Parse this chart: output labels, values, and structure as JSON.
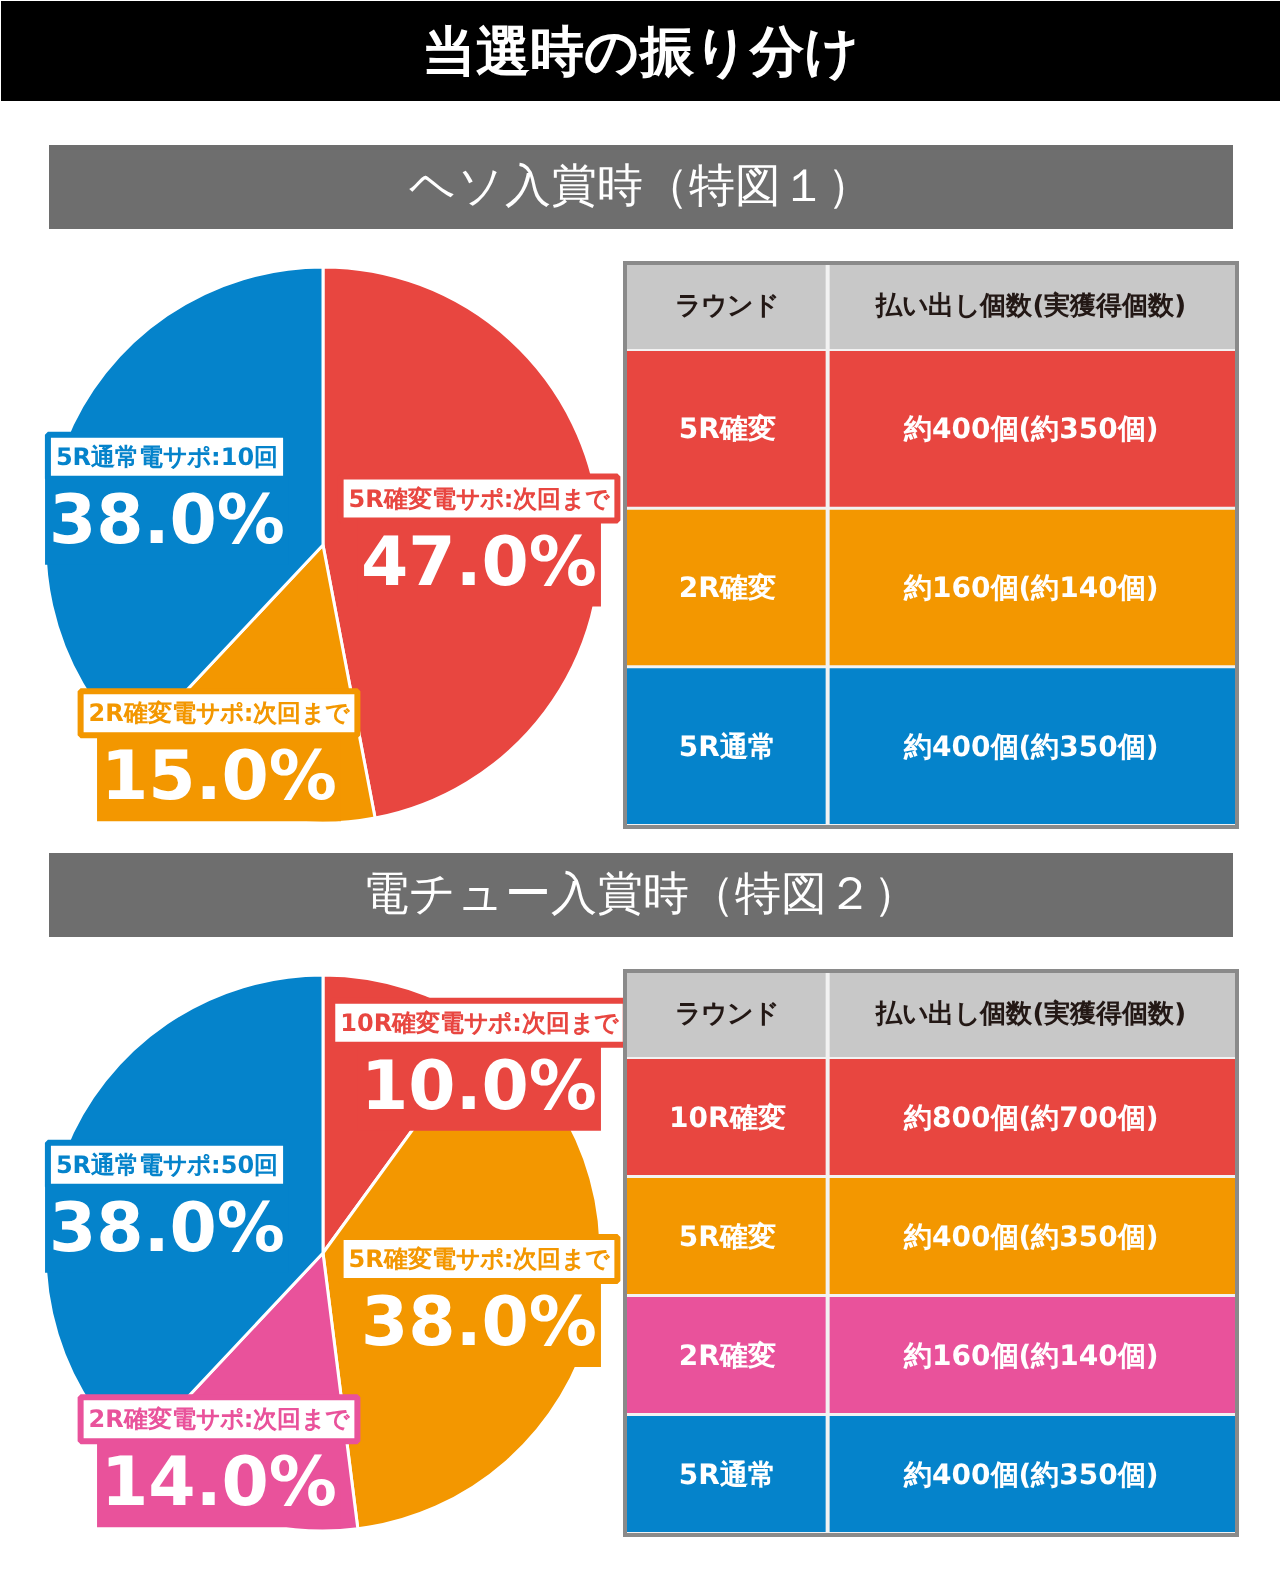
{
  "chart_data": [
    {
      "type": "pie",
      "title": "当選時の振り分け",
      "subtitle": "ヘソ入賞時（特図１）",
      "categories": [
        "5R確変電サポ:次回まで",
        "2R確変電サポ:次回まで",
        "5R通常電サポ:10回"
      ],
      "values": [
        47.0,
        15.0,
        38.0
      ],
      "colors": [
        "#e84640",
        "#f39700",
        "#0583cb"
      ],
      "value_labels": [
        "47.0%",
        "15.0%",
        "38.0%"
      ]
    },
    {
      "type": "other",
      "annotations": [
        "ラウンド",
        "払い出し個数(実獲得個数)"
      ],
      "categories": [
        "5R確変",
        "2R確変",
        "5R通常"
      ],
      "value_labels": [
        "約400個(約350個)",
        "約160個(約140個)",
        "約400個(約350個)"
      ],
      "colors": [
        "#e84640",
        "#f39700",
        "#0583cb"
      ]
    },
    {
      "type": "pie",
      "title": "電チュー入賞時（特図２）",
      "categories": [
        "10R確変電サポ:次回まで",
        "5R確変電サポ:次回まで",
        "2R確変電サポ:次回まで",
        "5R通常電サポ:50回"
      ],
      "values": [
        10.0,
        38.0,
        14.0,
        38.0
      ],
      "colors": [
        "#e84640",
        "#f39700",
        "#e9529b",
        "#0583cb"
      ],
      "value_labels": [
        "10.0%",
        "38.0%",
        "14.0%",
        "38.0%"
      ]
    },
    {
      "type": "other",
      "annotations": [
        "ラウンド",
        "払い出し個数(実獲得個数)"
      ],
      "categories": [
        "10R確変",
        "5R確変",
        "2R確変",
        "5R通常"
      ],
      "value_labels": [
        "約800個(約700個)",
        "約400個(約350個)",
        "約160個(約140個)",
        "約400個(約350個)"
      ],
      "colors": [
        "#e84640",
        "#f39700",
        "#e9529b",
        "#0583cb"
      ]
    }
  ]
}
